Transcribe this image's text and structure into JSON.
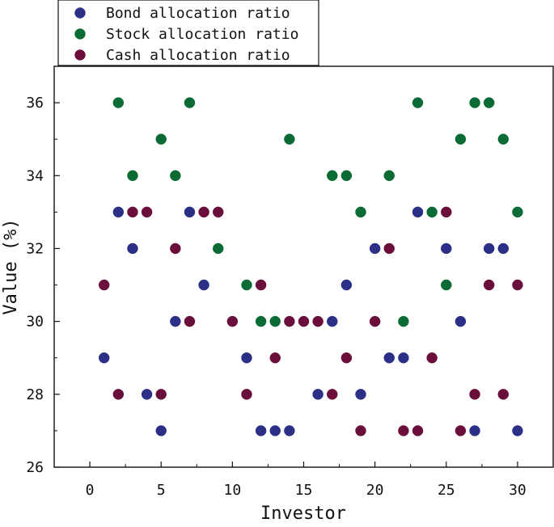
{
  "chart_data": {
    "type": "scatter",
    "xlabel": "Investor",
    "ylabel": "Value (%)",
    "xlim": [
      -2.5,
      32.5
    ],
    "ylim": [
      26,
      37
    ],
    "x_ticks": [
      0,
      5,
      10,
      15,
      20,
      25,
      30
    ],
    "y_ticks": [
      26,
      28,
      30,
      32,
      34,
      36
    ],
    "x_tick_labels": [
      "0",
      "5",
      "10",
      "15",
      "20",
      "25",
      "30"
    ],
    "y_tick_labels": [
      "26",
      "28",
      "30",
      "32",
      "34",
      "36"
    ],
    "grid": false,
    "legend_position": "top-left",
    "series": [
      {
        "name": "Bond allocation ratio",
        "color": "#2b2f86",
        "points": [
          [
            1,
            29
          ],
          [
            2,
            33
          ],
          [
            3,
            32
          ],
          [
            4,
            28
          ],
          [
            5,
            27
          ],
          [
            6,
            30
          ],
          [
            7,
            33
          ],
          [
            8,
            31
          ],
          [
            11,
            29
          ],
          [
            12,
            27
          ],
          [
            13,
            27
          ],
          [
            14,
            27
          ],
          [
            16,
            28
          ],
          [
            17,
            30
          ],
          [
            18,
            31
          ],
          [
            19,
            28
          ],
          [
            20,
            32
          ],
          [
            21,
            29
          ],
          [
            22,
            29
          ],
          [
            23,
            33
          ],
          [
            25,
            32
          ],
          [
            26,
            30
          ],
          [
            27,
            27
          ],
          [
            28,
            32
          ],
          [
            29,
            32
          ],
          [
            30,
            27
          ]
        ]
      },
      {
        "name": "Stock allocation ratio",
        "color": "#0b6b34",
        "points": [
          [
            2,
            36
          ],
          [
            3,
            34
          ],
          [
            5,
            35
          ],
          [
            6,
            34
          ],
          [
            7,
            36
          ],
          [
            9,
            32
          ],
          [
            11,
            31
          ],
          [
            12,
            30
          ],
          [
            13,
            30
          ],
          [
            14,
            35
          ],
          [
            17,
            34
          ],
          [
            18,
            34
          ],
          [
            19,
            33
          ],
          [
            21,
            34
          ],
          [
            22,
            30
          ],
          [
            23,
            36
          ],
          [
            24,
            33
          ],
          [
            25,
            31
          ],
          [
            26,
            35
          ],
          [
            27,
            36
          ],
          [
            28,
            36
          ],
          [
            29,
            35
          ],
          [
            30,
            33
          ]
        ]
      },
      {
        "name": "Cash allocation ratio",
        "color": "#6a0f3c",
        "points": [
          [
            1,
            31
          ],
          [
            2,
            28
          ],
          [
            3,
            33
          ],
          [
            4,
            33
          ],
          [
            5,
            28
          ],
          [
            6,
            32
          ],
          [
            7,
            30
          ],
          [
            8,
            33
          ],
          [
            9,
            33
          ],
          [
            10,
            30
          ],
          [
            11,
            28
          ],
          [
            12,
            31
          ],
          [
            13,
            29
          ],
          [
            14,
            30
          ],
          [
            15,
            30
          ],
          [
            16,
            30
          ],
          [
            17,
            28
          ],
          [
            18,
            29
          ],
          [
            19,
            27
          ],
          [
            20,
            30
          ],
          [
            21,
            32
          ],
          [
            22,
            27
          ],
          [
            23,
            27
          ],
          [
            24,
            29
          ],
          [
            25,
            33
          ],
          [
            26,
            27
          ],
          [
            27,
            28
          ],
          [
            28,
            31
          ],
          [
            29,
            28
          ],
          [
            30,
            31
          ]
        ]
      }
    ]
  }
}
